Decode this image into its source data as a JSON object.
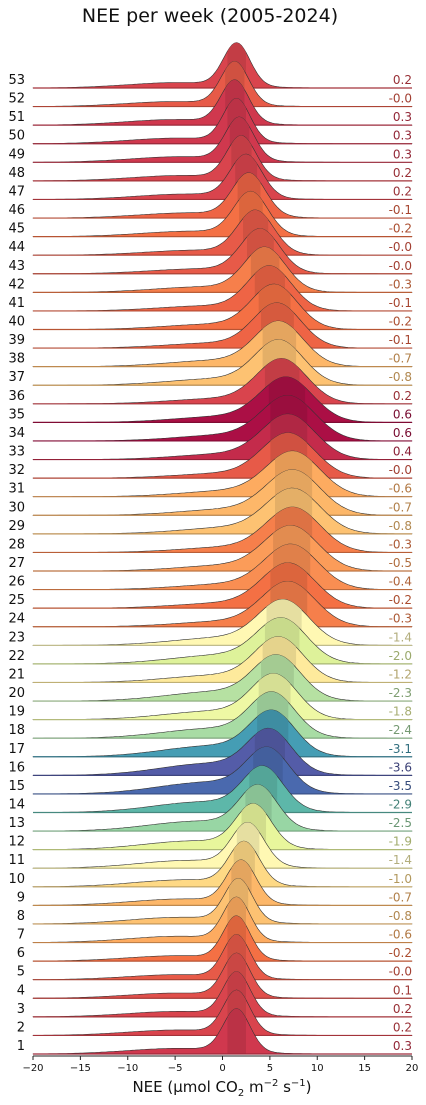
{
  "chart_data": {
    "type": "ridgeline",
    "title": "NEE per week (2005-2024)",
    "xlabel": "NEE (μmol CO₂ m⁻² s⁻¹)",
    "xlabel_parts": [
      "NEE (μmol CO",
      "2",
      " m",
      "−2",
      " s",
      "−1",
      ")"
    ],
    "xlim": [
      -20,
      20
    ],
    "xticks": [
      -20,
      -15,
      -10,
      -5,
      0,
      5,
      10,
      15,
      20
    ],
    "xtick_labels": [
      "−20",
      "−15",
      "−10",
      "−5",
      "0",
      "5",
      "10",
      "15",
      "20"
    ],
    "grid": false,
    "colormap": "Spectral",
    "series": [
      {
        "week": "1",
        "mean_label": "0.3",
        "peak": 1.5
      },
      {
        "week": "2",
        "mean_label": "0.2",
        "peak": 1.5
      },
      {
        "week": "3",
        "mean_label": "0.2",
        "peak": 1.5
      },
      {
        "week": "4",
        "mean_label": "0.1",
        "peak": 1.5
      },
      {
        "week": "5",
        "mean_label": "-0.0",
        "peak": 1.5
      },
      {
        "week": "6",
        "mean_label": "-0.2",
        "peak": 1.5
      },
      {
        "week": "7",
        "mean_label": "-0.6",
        "peak": 1.5
      },
      {
        "week": "8",
        "mean_label": "-0.8",
        "peak": 1.7
      },
      {
        "week": "9",
        "mean_label": "-0.7",
        "peak": 2.0
      },
      {
        "week": "10",
        "mean_label": "-1.0",
        "peak": 2.3
      },
      {
        "week": "11",
        "mean_label": "-1.4",
        "peak": 2.7
      },
      {
        "week": "12",
        "mean_label": "-1.9",
        "peak": 3.3
      },
      {
        "week": "13",
        "mean_label": "-2.5",
        "peak": 3.8
      },
      {
        "week": "14",
        "mean_label": "-2.9",
        "peak": 4.3
      },
      {
        "week": "15",
        "mean_label": "-3.5",
        "peak": 4.8
      },
      {
        "week": "16",
        "mean_label": "-3.6",
        "peak": 5.0
      },
      {
        "week": "17",
        "mean_label": "-3.1",
        "peak": 5.3
      },
      {
        "week": "18",
        "mean_label": "-2.4",
        "peak": 5.3
      },
      {
        "week": "19",
        "mean_label": "-1.8",
        "peak": 5.5
      },
      {
        "week": "20",
        "mean_label": "-2.3",
        "peak": 5.8
      },
      {
        "week": "21",
        "mean_label": "-1.2",
        "peak": 6.0
      },
      {
        "week": "22",
        "mean_label": "-2.0",
        "peak": 6.3
      },
      {
        "week": "23",
        "mean_label": "-1.4",
        "peak": 6.5
      },
      {
        "week": "24",
        "mean_label": "-0.3",
        "peak": 7.0
      },
      {
        "week": "25",
        "mean_label": "-0.2",
        "peak": 7.0
      },
      {
        "week": "26",
        "mean_label": "-0.4",
        "peak": 7.3
      },
      {
        "week": "27",
        "mean_label": "-0.5",
        "peak": 7.3
      },
      {
        "week": "28",
        "mean_label": "-0.3",
        "peak": 7.5
      },
      {
        "week": "29",
        "mean_label": "-0.8",
        "peak": 7.5
      },
      {
        "week": "30",
        "mean_label": "-0.7",
        "peak": 7.5
      },
      {
        "week": "31",
        "mean_label": "-0.6",
        "peak": 7.5
      },
      {
        "week": "32",
        "mean_label": "-0.0",
        "peak": 7.0
      },
      {
        "week": "33",
        "mean_label": "0.4",
        "peak": 7.0
      },
      {
        "week": "34",
        "mean_label": "0.6",
        "peak": 7.0
      },
      {
        "week": "35",
        "mean_label": "0.6",
        "peak": 6.8
      },
      {
        "week": "36",
        "mean_label": "0.2",
        "peak": 6.3
      },
      {
        "week": "37",
        "mean_label": "-0.8",
        "peak": 6.0
      },
      {
        "week": "38",
        "mean_label": "-0.7",
        "peak": 6.0
      },
      {
        "week": "39",
        "mean_label": "-0.1",
        "peak": 5.8
      },
      {
        "week": "40",
        "mean_label": "-0.2",
        "peak": 5.5
      },
      {
        "week": "41",
        "mean_label": "-0.1",
        "peak": 5.0
      },
      {
        "week": "42",
        "mean_label": "-0.3",
        "peak": 4.5
      },
      {
        "week": "43",
        "mean_label": "-0.0",
        "peak": 4.0
      },
      {
        "week": "44",
        "mean_label": "-0.0",
        "peak": 3.5
      },
      {
        "week": "45",
        "mean_label": "-0.2",
        "peak": 3.0
      },
      {
        "week": "46",
        "mean_label": "-0.1",
        "peak": 2.8
      },
      {
        "week": "47",
        "mean_label": "0.2",
        "peak": 2.5
      },
      {
        "week": "48",
        "mean_label": "0.2",
        "peak": 2.0
      },
      {
        "week": "49",
        "mean_label": "0.3",
        "peak": 1.8
      },
      {
        "week": "50",
        "mean_label": "0.3",
        "peak": 1.5
      },
      {
        "week": "51",
        "mean_label": "0.3",
        "peak": 1.3
      },
      {
        "week": "52",
        "mean_label": "-0.0",
        "peak": 1.3
      },
      {
        "week": "53",
        "mean_label": "0.2",
        "peak": 1.5
      }
    ]
  }
}
